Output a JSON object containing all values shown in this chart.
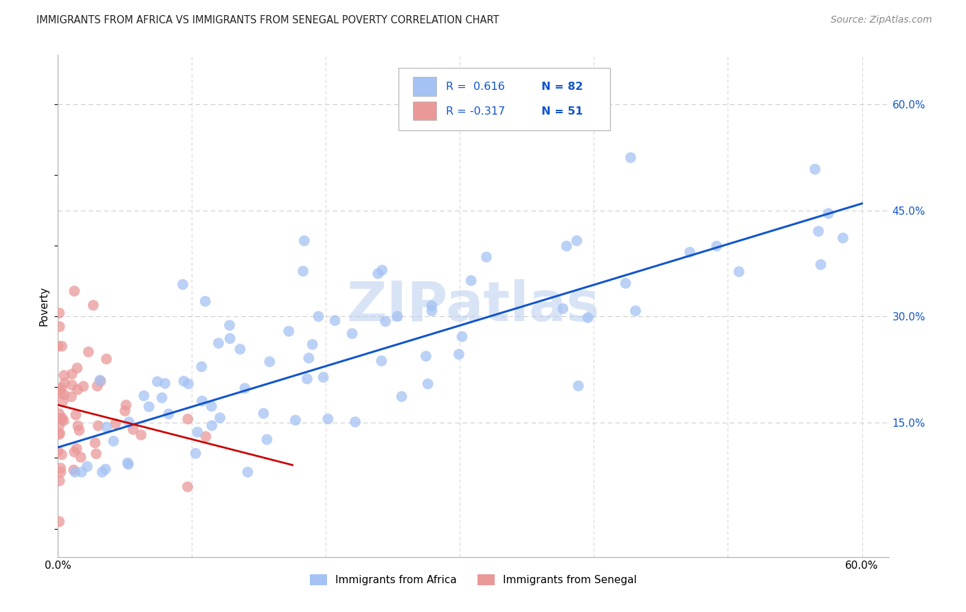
{
  "title": "IMMIGRANTS FROM AFRICA VS IMMIGRANTS FROM SENEGAL POVERTY CORRELATION CHART",
  "source": "Source: ZipAtlas.com",
  "ylabel": "Poverty",
  "watermark": "ZIPatlas",
  "xlim": [
    0.0,
    0.62
  ],
  "ylim": [
    -0.04,
    0.67
  ],
  "ytick_right": [
    0.15,
    0.3,
    0.45,
    0.6
  ],
  "ytick_right_labels": [
    "15.0%",
    "30.0%",
    "45.0%",
    "60.0%"
  ],
  "legend_bottom_africa": "Immigrants from Africa",
  "legend_bottom_senegal": "Immigrants from Senegal",
  "blue_color": "#a4c2f4",
  "pink_color": "#ea9999",
  "blue_line_color": "#1155cc",
  "pink_line_color": "#cc0000",
  "grid_color": "#cccccc",
  "africa_line_x0": 0.0,
  "africa_line_y0": 0.115,
  "africa_line_x1": 0.6,
  "africa_line_y1": 0.46,
  "senegal_line_x0": 0.0,
  "senegal_line_y0": 0.175,
  "senegal_line_x1": 0.175,
  "senegal_line_y1": 0.09
}
